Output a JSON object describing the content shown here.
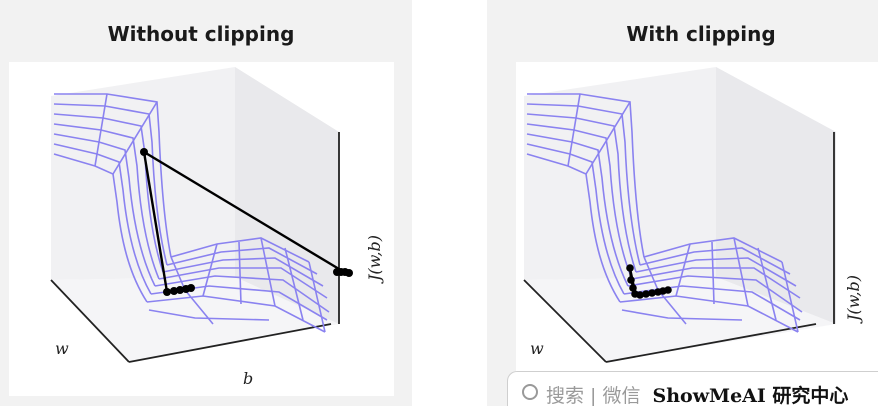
{
  "panels": {
    "left": {
      "title": "Without clipping"
    },
    "right": {
      "title": "With clipping"
    }
  },
  "axes": {
    "w_label": "w",
    "b_label": "b",
    "j_label": "J(w,b)"
  },
  "search_bar": {
    "icon": "search-icon",
    "placeholder": "搜索 | 微信",
    "brand": "ShowMeAI 研究中心"
  },
  "colors": {
    "surface_lines": "#8a82f0",
    "trajectory": "#000000",
    "panel_background": "#f2f2f2"
  }
}
